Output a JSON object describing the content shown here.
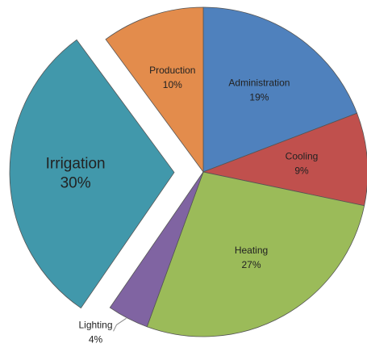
{
  "chart_data": {
    "type": "pie",
    "categories": [
      "Administration",
      "Cooling",
      "Heating",
      "Lighting",
      "Irrigation",
      "Production"
    ],
    "values": [
      19,
      9,
      27,
      4,
      30,
      10
    ],
    "value_labels": [
      "19%",
      "9%",
      "27%",
      "4%",
      "30%",
      "10%"
    ],
    "colors": [
      "#4f81bd",
      "#c0504d",
      "#9bbb59",
      "#8064a2",
      "#4198ab",
      "#e38c4c"
    ],
    "exploded": [
      false,
      false,
      false,
      false,
      true,
      false
    ]
  }
}
